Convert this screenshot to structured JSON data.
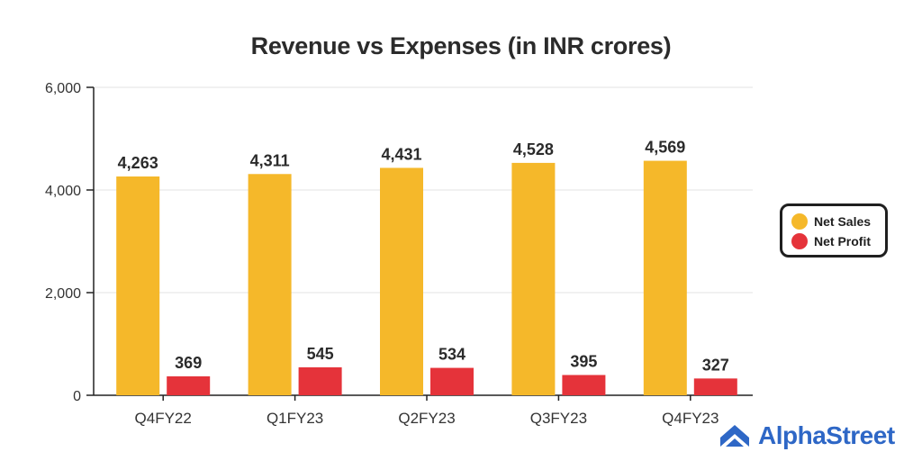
{
  "chart_data": {
    "type": "bar",
    "title": "Revenue vs Expenses (in INR crores)",
    "categories": [
      "Q4FY22",
      "Q1FY23",
      "Q2FY23",
      "Q3FY23",
      "Q4FY23"
    ],
    "series": [
      {
        "name": "Net Sales",
        "values": [
          4263,
          4311,
          4431,
          4528,
          4569
        ],
        "labels": [
          "4,263",
          "4,311",
          "4,431",
          "4,528",
          "4,569"
        ],
        "color": "#f5b82a"
      },
      {
        "name": "Net Profit",
        "values": [
          369,
          545,
          534,
          395,
          327
        ],
        "labels": [
          "369",
          "545",
          "534",
          "395",
          "327"
        ],
        "color": "#e5333a"
      }
    ],
    "ylim": [
      0,
      6000
    ],
    "yticks": [
      0,
      2000,
      4000,
      6000
    ],
    "ytick_labels": [
      "0",
      "2,000",
      "4,000",
      "6,000"
    ],
    "grid": true,
    "legend_position": "right"
  },
  "logo": {
    "text": "AlphaStreet",
    "color": "#2e67c6"
  }
}
